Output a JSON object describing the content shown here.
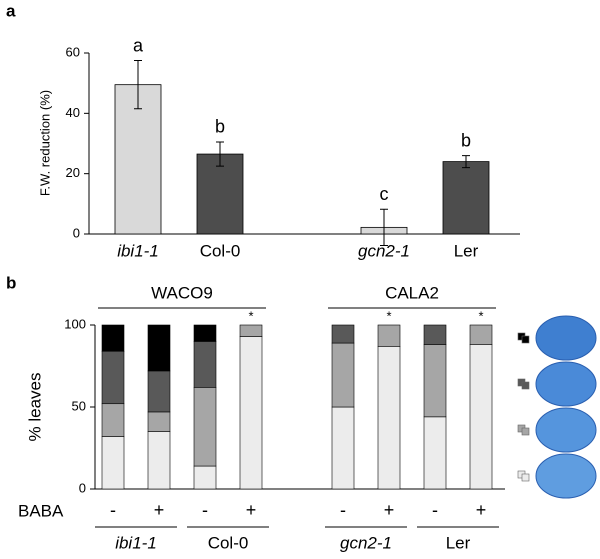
{
  "chart_data": [
    {
      "type": "bar",
      "panel_label": "a",
      "ylabel": "F.W. reduction (%)",
      "categories": [
        "ibi1-1",
        "Col-0",
        null,
        "gcn2-1",
        "Ler"
      ],
      "italic": [
        true,
        false,
        null,
        true,
        false
      ],
      "values": [
        49.5,
        26.5,
        null,
        2.2,
        24
      ],
      "errors": [
        8,
        4,
        null,
        6,
        2
      ],
      "annotations": [
        "a",
        "b",
        null,
        "c",
        "b"
      ],
      "colors": [
        "#d9d9d9",
        "#4d4d4d",
        null,
        "#d9d9d9",
        "#4d4d4d"
      ],
      "ylim": [
        0,
        60
      ],
      "yticks": [
        0,
        20,
        40,
        60
      ]
    },
    {
      "type": "stacked_bar",
      "panel_label": "b",
      "ylabel": "% leaves",
      "xlabel": "BABA",
      "categories": [
        "-",
        "+",
        "-",
        "+",
        "-",
        "+",
        "-",
        "+"
      ],
      "groups": [
        {
          "title": "WACO9",
          "genotypes": [
            {
              "name": "ibi1-1",
              "italic": true
            },
            {
              "name": "Col-0",
              "italic": false
            }
          ]
        },
        {
          "title": "CALA2",
          "genotypes": [
            {
              "name": "gcn2-1",
              "italic": true
            },
            {
              "name": "Ler",
              "italic": false
            }
          ]
        }
      ],
      "series": [
        {
          "color": "#ececec",
          "values": [
            32,
            35,
            14,
            93,
            50,
            87,
            44,
            88
          ]
        },
        {
          "color": "#a6a6a6",
          "values": [
            20,
            12,
            48,
            7,
            39,
            13,
            44,
            12
          ]
        },
        {
          "color": "#595959",
          "values": [
            32,
            25,
            28,
            0,
            11,
            0,
            12,
            0
          ]
        },
        {
          "color": "#000000",
          "values": [
            16,
            28,
            10,
            0,
            0,
            0,
            0,
            0
          ]
        }
      ],
      "annotations": [
        null,
        null,
        null,
        "*",
        null,
        "*",
        null,
        "*"
      ],
      "ylim": [
        0,
        100
      ],
      "yticks": [
        0,
        50,
        100
      ]
    }
  ]
}
